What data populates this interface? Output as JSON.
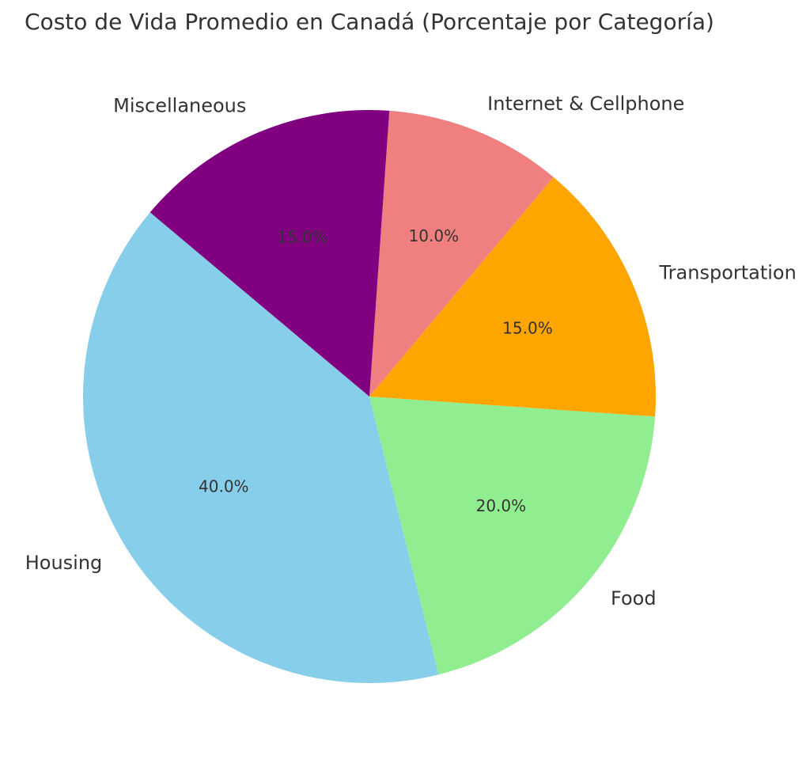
{
  "chart_data": {
    "type": "pie",
    "title": "Costo de Vida Promedio en Canadá (Porcentaje por Categoría)",
    "slices": [
      {
        "label": "Housing",
        "value": 40.0,
        "pct_label": "40.0%",
        "color": "#87CEEB"
      },
      {
        "label": "Food",
        "value": 20.0,
        "pct_label": "20.0%",
        "color": "#90EE90"
      },
      {
        "label": "Transportation",
        "value": 15.0,
        "pct_label": "15.0%",
        "color": "#FFA500"
      },
      {
        "label": "Internet & Cellphone",
        "value": 10.0,
        "pct_label": "10.0%",
        "color": "#F08080"
      },
      {
        "label": "Miscellaneous",
        "value": 15.0,
        "pct_label": "15.0%",
        "color": "#800080"
      }
    ]
  }
}
